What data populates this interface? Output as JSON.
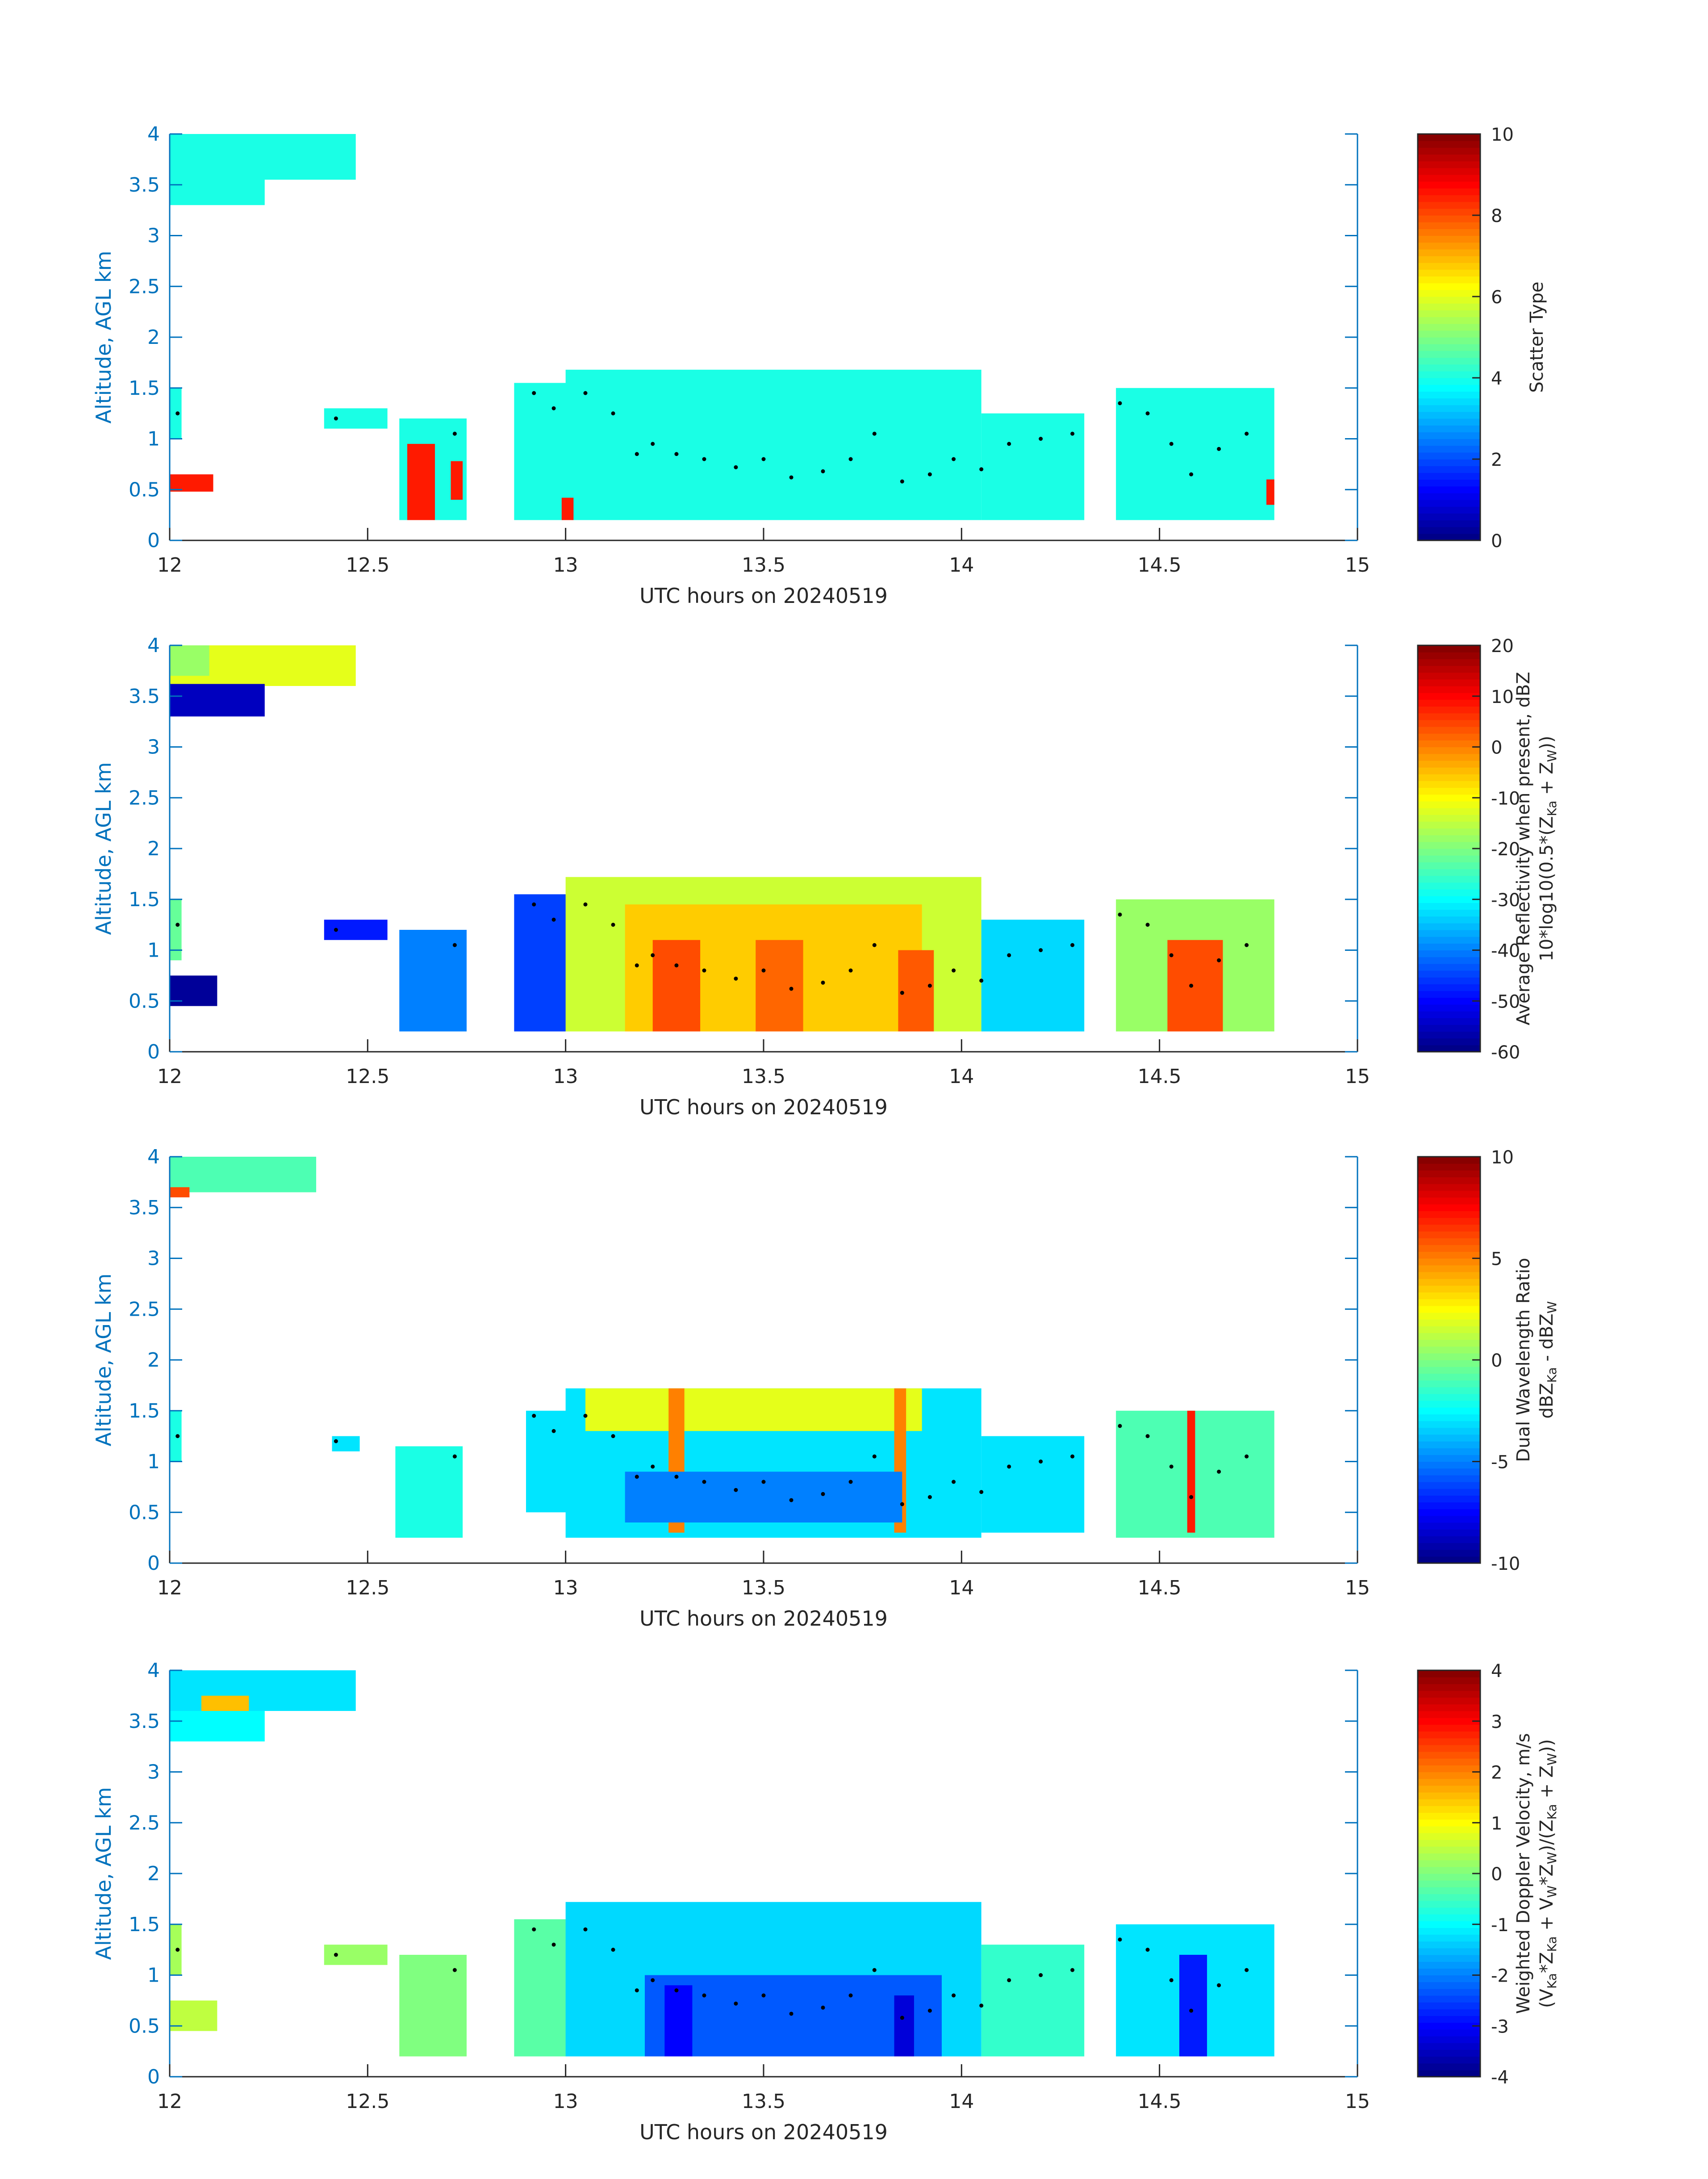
{
  "chart_data": [
    {
      "type": "heatmap",
      "xlabel": "UTC hours on 20240519",
      "ylabel": "Altitude, AGL km",
      "xlim": [
        12,
        15
      ],
      "ylim": [
        0,
        4
      ],
      "xticks": [
        "12",
        "12.5",
        "13",
        "13.5",
        "14",
        "14.5",
        "15"
      ],
      "yticks": [
        "0",
        "0.5",
        "1",
        "1.5",
        "2",
        "2.5",
        "3",
        "3.5",
        "4"
      ],
      "colorbar": {
        "label_lines": [
          "Scatter Type"
        ],
        "range": [
          0,
          10
        ],
        "ticks": [
          "0",
          "2",
          "4",
          "6",
          "8",
          "10"
        ]
      },
      "regions": [
        {
          "x0": 12.0,
          "x1": 12.47,
          "y0": 3.55,
          "y1": 4.0,
          "value": 4
        },
        {
          "x0": 12.0,
          "x1": 12.24,
          "y0": 3.3,
          "y1": 3.6,
          "value": 4
        },
        {
          "x0": 12.0,
          "x1": 12.03,
          "y0": 1.0,
          "y1": 1.5,
          "value": 4
        },
        {
          "x0": 12.39,
          "x1": 12.55,
          "y0": 1.1,
          "y1": 1.3,
          "value": 4
        },
        {
          "x0": 12.58,
          "x1": 12.75,
          "y0": 0.2,
          "y1": 1.2,
          "value": 4
        },
        {
          "x0": 12.87,
          "x1": 13.1,
          "y0": 0.2,
          "y1": 1.55,
          "value": 4
        },
        {
          "x0": 13.0,
          "x1": 14.05,
          "y0": 0.2,
          "y1": 1.68,
          "value": 4
        },
        {
          "x0": 14.05,
          "x1": 14.31,
          "y0": 0.2,
          "y1": 1.25,
          "value": 4
        },
        {
          "x0": 14.39,
          "x1": 14.79,
          "y0": 0.2,
          "y1": 1.5,
          "value": 4
        },
        {
          "x0": 12.0,
          "x1": 12.11,
          "y0": 0.48,
          "y1": 0.65,
          "value": 8.5
        },
        {
          "x0": 12.6,
          "x1": 12.67,
          "y0": 0.2,
          "y1": 0.95,
          "value": 8.5
        },
        {
          "x0": 12.71,
          "x1": 12.74,
          "y0": 0.4,
          "y1": 0.78,
          "value": 8.5
        },
        {
          "x0": 12.99,
          "x1": 13.02,
          "y0": 0.2,
          "y1": 0.42,
          "value": 8.5
        },
        {
          "x0": 14.77,
          "x1": 14.79,
          "y0": 0.35,
          "y1": 0.6,
          "value": 8.5
        }
      ],
      "markers": [
        {
          "x": 12.02,
          "y": 1.25
        },
        {
          "x": 12.42,
          "y": 1.2
        },
        {
          "x": 12.72,
          "y": 1.05
        },
        {
          "x": 12.92,
          "y": 1.45
        },
        {
          "x": 12.97,
          "y": 1.3
        },
        {
          "x": 13.05,
          "y": 1.45
        },
        {
          "x": 13.12,
          "y": 1.25
        },
        {
          "x": 13.18,
          "y": 0.85
        },
        {
          "x": 13.22,
          "y": 0.95
        },
        {
          "x": 13.28,
          "y": 0.85
        },
        {
          "x": 13.35,
          "y": 0.8
        },
        {
          "x": 13.43,
          "y": 0.72
        },
        {
          "x": 13.5,
          "y": 0.8
        },
        {
          "x": 13.57,
          "y": 0.62
        },
        {
          "x": 13.65,
          "y": 0.68
        },
        {
          "x": 13.72,
          "y": 0.8
        },
        {
          "x": 13.78,
          "y": 1.05
        },
        {
          "x": 13.85,
          "y": 0.58
        },
        {
          "x": 13.92,
          "y": 0.65
        },
        {
          "x": 13.98,
          "y": 0.8
        },
        {
          "x": 14.05,
          "y": 0.7
        },
        {
          "x": 14.12,
          "y": 0.95
        },
        {
          "x": 14.2,
          "y": 1.0
        },
        {
          "x": 14.28,
          "y": 1.05
        },
        {
          "x": 14.4,
          "y": 1.35
        },
        {
          "x": 14.47,
          "y": 1.25
        },
        {
          "x": 14.53,
          "y": 0.95
        },
        {
          "x": 14.58,
          "y": 0.65
        },
        {
          "x": 14.65,
          "y": 0.9
        },
        {
          "x": 14.72,
          "y": 1.05
        }
      ]
    },
    {
      "type": "heatmap",
      "xlabel": "UTC hours on 20240519",
      "ylabel": "Altitude, AGL km",
      "xlim": [
        12,
        15
      ],
      "ylim": [
        0,
        4
      ],
      "xticks": [
        "12",
        "12.5",
        "13",
        "13.5",
        "14",
        "14.5",
        "15"
      ],
      "yticks": [
        "0",
        "0.5",
        "1",
        "1.5",
        "2",
        "2.5",
        "3",
        "3.5",
        "4"
      ],
      "colorbar": {
        "label_lines": [
          "Average Reflectivity when present, dBZ",
          "10*log10(0.5*(Z",
          "Ka",
          " + Z",
          "W",
          "))"
        ],
        "range": [
          -60,
          20
        ],
        "ticks": [
          "-60",
          "-50",
          "-40",
          "-30",
          "-20",
          "-10",
          "0",
          "10",
          "20"
        ]
      },
      "regions": [
        {
          "x0": 12.0,
          "x1": 12.47,
          "y0": 3.6,
          "y1": 4.0,
          "value": -12
        },
        {
          "x0": 12.0,
          "x1": 12.1,
          "y0": 3.7,
          "y1": 4.0,
          "value": -18
        },
        {
          "x0": 12.0,
          "x1": 12.24,
          "y0": 3.3,
          "y1": 3.62,
          "value": -55
        },
        {
          "x0": 12.0,
          "x1": 12.03,
          "y0": 0.9,
          "y1": 1.5,
          "value": -22
        },
        {
          "x0": 12.0,
          "x1": 12.12,
          "y0": 0.45,
          "y1": 0.75,
          "value": -58
        },
        {
          "x0": 12.39,
          "x1": 12.55,
          "y0": 1.1,
          "y1": 1.3,
          "value": -48
        },
        {
          "x0": 12.58,
          "x1": 12.75,
          "y0": 0.2,
          "y1": 1.2,
          "value": -40
        },
        {
          "x0": 12.87,
          "x1": 13.1,
          "y0": 0.2,
          "y1": 1.55,
          "value": -45
        },
        {
          "x0": 13.0,
          "x1": 14.05,
          "y0": 0.2,
          "y1": 1.72,
          "value": -14
        },
        {
          "x0": 13.15,
          "x1": 13.9,
          "y0": 0.2,
          "y1": 1.45,
          "value": -6
        },
        {
          "x0": 13.22,
          "x1": 13.34,
          "y0": 0.2,
          "y1": 1.1,
          "value": 4
        },
        {
          "x0": 13.48,
          "x1": 13.6,
          "y0": 0.2,
          "y1": 1.1,
          "value": 2
        },
        {
          "x0": 13.84,
          "x1": 13.93,
          "y0": 0.2,
          "y1": 1.0,
          "value": 3
        },
        {
          "x0": 14.05,
          "x1": 14.31,
          "y0": 0.2,
          "y1": 1.3,
          "value": -33
        },
        {
          "x0": 14.39,
          "x1": 14.79,
          "y0": 0.2,
          "y1": 1.5,
          "value": -18
        },
        {
          "x0": 14.52,
          "x1": 14.66,
          "y0": 0.2,
          "y1": 1.1,
          "value": 4
        }
      ],
      "markers": [
        {
          "x": 12.02,
          "y": 1.25
        },
        {
          "x": 12.42,
          "y": 1.2
        },
        {
          "x": 12.72,
          "y": 1.05
        },
        {
          "x": 12.92,
          "y": 1.45
        },
        {
          "x": 12.97,
          "y": 1.3
        },
        {
          "x": 13.05,
          "y": 1.45
        },
        {
          "x": 13.12,
          "y": 1.25
        },
        {
          "x": 13.18,
          "y": 0.85
        },
        {
          "x": 13.22,
          "y": 0.95
        },
        {
          "x": 13.28,
          "y": 0.85
        },
        {
          "x": 13.35,
          "y": 0.8
        },
        {
          "x": 13.43,
          "y": 0.72
        },
        {
          "x": 13.5,
          "y": 0.8
        },
        {
          "x": 13.57,
          "y": 0.62
        },
        {
          "x": 13.65,
          "y": 0.68
        },
        {
          "x": 13.72,
          "y": 0.8
        },
        {
          "x": 13.78,
          "y": 1.05
        },
        {
          "x": 13.85,
          "y": 0.58
        },
        {
          "x": 13.92,
          "y": 0.65
        },
        {
          "x": 13.98,
          "y": 0.8
        },
        {
          "x": 14.05,
          "y": 0.7
        },
        {
          "x": 14.12,
          "y": 0.95
        },
        {
          "x": 14.2,
          "y": 1.0
        },
        {
          "x": 14.28,
          "y": 1.05
        },
        {
          "x": 14.4,
          "y": 1.35
        },
        {
          "x": 14.47,
          "y": 1.25
        },
        {
          "x": 14.53,
          "y": 0.95
        },
        {
          "x": 14.58,
          "y": 0.65
        },
        {
          "x": 14.65,
          "y": 0.9
        },
        {
          "x": 14.72,
          "y": 1.05
        }
      ]
    },
    {
      "type": "heatmap",
      "xlabel": "UTC hours on 20240519",
      "ylabel": "Altitude, AGL km",
      "xlim": [
        12,
        15
      ],
      "ylim": [
        0,
        4
      ],
      "xticks": [
        "12",
        "12.5",
        "13",
        "13.5",
        "14",
        "14.5",
        "15"
      ],
      "yticks": [
        "0",
        "0.5",
        "1",
        "1.5",
        "2",
        "2.5",
        "3",
        "3.5",
        "4"
      ],
      "colorbar": {
        "label_lines": [
          "Dual Wavelength Ratio",
          "dBZ",
          "Ka",
          " - dBZ",
          "W"
        ],
        "range": [
          -10,
          10
        ],
        "ticks": [
          "-10",
          "-5",
          "0",
          "5",
          "10"
        ]
      },
      "regions": [
        {
          "x0": 12.0,
          "x1": 12.37,
          "y0": 3.65,
          "y1": 4.0,
          "value": -1
        },
        {
          "x0": 12.0,
          "x1": 12.05,
          "y0": 3.6,
          "y1": 3.7,
          "value": 6
        },
        {
          "x0": 12.0,
          "x1": 12.03,
          "y0": 1.0,
          "y1": 1.5,
          "value": -2
        },
        {
          "x0": 12.41,
          "x1": 12.48,
          "y0": 1.1,
          "y1": 1.25,
          "value": -3
        },
        {
          "x0": 12.57,
          "x1": 12.74,
          "y0": 0.25,
          "y1": 1.15,
          "value": -2
        },
        {
          "x0": 12.9,
          "x1": 13.1,
          "y0": 0.5,
          "y1": 1.5,
          "value": -3
        },
        {
          "x0": 13.0,
          "x1": 14.05,
          "y0": 0.25,
          "y1": 1.72,
          "value": -3
        },
        {
          "x0": 13.05,
          "x1": 13.9,
          "y0": 1.3,
          "y1": 1.72,
          "value": 2
        },
        {
          "x0": 13.26,
          "x1": 13.3,
          "y0": 0.3,
          "y1": 1.72,
          "value": 5
        },
        {
          "x0": 13.83,
          "x1": 13.86,
          "y0": 0.3,
          "y1": 1.72,
          "value": 5
        },
        {
          "x0": 13.15,
          "x1": 13.85,
          "y0": 0.4,
          "y1": 0.9,
          "value": -5
        },
        {
          "x0": 14.05,
          "x1": 14.31,
          "y0": 0.3,
          "y1": 1.25,
          "value": -3
        },
        {
          "x0": 14.39,
          "x1": 14.79,
          "y0": 0.25,
          "y1": 1.5,
          "value": -1
        },
        {
          "x0": 14.57,
          "x1": 14.59,
          "y0": 0.3,
          "y1": 1.5,
          "value": 7
        }
      ],
      "markers": [
        {
          "x": 12.02,
          "y": 1.25
        },
        {
          "x": 12.42,
          "y": 1.2
        },
        {
          "x": 12.72,
          "y": 1.05
        },
        {
          "x": 12.92,
          "y": 1.45
        },
        {
          "x": 12.97,
          "y": 1.3
        },
        {
          "x": 13.05,
          "y": 1.45
        },
        {
          "x": 13.12,
          "y": 1.25
        },
        {
          "x": 13.18,
          "y": 0.85
        },
        {
          "x": 13.22,
          "y": 0.95
        },
        {
          "x": 13.28,
          "y": 0.85
        },
        {
          "x": 13.35,
          "y": 0.8
        },
        {
          "x": 13.43,
          "y": 0.72
        },
        {
          "x": 13.5,
          "y": 0.8
        },
        {
          "x": 13.57,
          "y": 0.62
        },
        {
          "x": 13.65,
          "y": 0.68
        },
        {
          "x": 13.72,
          "y": 0.8
        },
        {
          "x": 13.78,
          "y": 1.05
        },
        {
          "x": 13.85,
          "y": 0.58
        },
        {
          "x": 13.92,
          "y": 0.65
        },
        {
          "x": 13.98,
          "y": 0.8
        },
        {
          "x": 14.05,
          "y": 0.7
        },
        {
          "x": 14.12,
          "y": 0.95
        },
        {
          "x": 14.2,
          "y": 1.0
        },
        {
          "x": 14.28,
          "y": 1.05
        },
        {
          "x": 14.4,
          "y": 1.35
        },
        {
          "x": 14.47,
          "y": 1.25
        },
        {
          "x": 14.53,
          "y": 0.95
        },
        {
          "x": 14.58,
          "y": 0.65
        },
        {
          "x": 14.65,
          "y": 0.9
        },
        {
          "x": 14.72,
          "y": 1.05
        }
      ]
    },
    {
      "type": "heatmap",
      "xlabel": "UTC hours on 20240519",
      "ylabel": "Altitude, AGL km",
      "xlim": [
        12,
        15
      ],
      "ylim": [
        0,
        4
      ],
      "xticks": [
        "12",
        "12.5",
        "13",
        "13.5",
        "14",
        "14.5",
        "15"
      ],
      "yticks": [
        "0",
        "0.5",
        "1",
        "1.5",
        "2",
        "2.5",
        "3",
        "3.5",
        "4"
      ],
      "colorbar": {
        "label_lines": [
          "Weighted Doppler Velocity, m/s",
          "(V",
          "Ka",
          "*Z",
          "Ka",
          " + V",
          "W",
          "*Z",
          "W",
          ")/(Z",
          "Ka",
          " + Z",
          "W",
          "))"
        ],
        "range": [
          -4,
          4
        ],
        "ticks": [
          "-4",
          "-3",
          "-2",
          "-1",
          "0",
          "1",
          "2",
          "3",
          "4"
        ]
      },
      "regions": [
        {
          "x0": 12.0,
          "x1": 12.47,
          "y0": 3.6,
          "y1": 4.0,
          "value": -1.2
        },
        {
          "x0": 12.08,
          "x1": 12.2,
          "y0": 3.55,
          "y1": 3.75,
          "value": 1.5
        },
        {
          "x0": 12.0,
          "x1": 12.24,
          "y0": 3.3,
          "y1": 3.6,
          "value": -1.0
        },
        {
          "x0": 12.0,
          "x1": 12.03,
          "y0": 1.0,
          "y1": 1.5,
          "value": 0.3
        },
        {
          "x0": 12.0,
          "x1": 12.12,
          "y0": 0.45,
          "y1": 0.75,
          "value": 0.5
        },
        {
          "x0": 12.39,
          "x1": 12.55,
          "y0": 1.1,
          "y1": 1.3,
          "value": 0.2
        },
        {
          "x0": 12.58,
          "x1": 12.75,
          "y0": 0.2,
          "y1": 1.2,
          "value": 0.0
        },
        {
          "x0": 12.87,
          "x1": 13.1,
          "y0": 0.2,
          "y1": 1.55,
          "value": -0.3
        },
        {
          "x0": 13.0,
          "x1": 14.05,
          "y0": 0.2,
          "y1": 1.72,
          "value": -1.3
        },
        {
          "x0": 13.2,
          "x1": 13.95,
          "y0": 0.2,
          "y1": 1.0,
          "value": -2.3
        },
        {
          "x0": 13.25,
          "x1": 13.32,
          "y0": 0.2,
          "y1": 0.9,
          "value": -3.0
        },
        {
          "x0": 13.83,
          "x1": 13.88,
          "y0": 0.2,
          "y1": 0.8,
          "value": -3.3
        },
        {
          "x0": 14.05,
          "x1": 14.31,
          "y0": 0.2,
          "y1": 1.3,
          "value": -0.6
        },
        {
          "x0": 14.39,
          "x1": 14.79,
          "y0": 0.2,
          "y1": 1.5,
          "value": -1.2
        },
        {
          "x0": 14.55,
          "x1": 14.62,
          "y0": 0.2,
          "y1": 1.2,
          "value": -2.8
        }
      ],
      "markers": [
        {
          "x": 12.02,
          "y": 1.25
        },
        {
          "x": 12.42,
          "y": 1.2
        },
        {
          "x": 12.72,
          "y": 1.05
        },
        {
          "x": 12.92,
          "y": 1.45
        },
        {
          "x": 12.97,
          "y": 1.3
        },
        {
          "x": 13.05,
          "y": 1.45
        },
        {
          "x": 13.12,
          "y": 1.25
        },
        {
          "x": 13.18,
          "y": 0.85
        },
        {
          "x": 13.22,
          "y": 0.95
        },
        {
          "x": 13.28,
          "y": 0.85
        },
        {
          "x": 13.35,
          "y": 0.8
        },
        {
          "x": 13.43,
          "y": 0.72
        },
        {
          "x": 13.5,
          "y": 0.8
        },
        {
          "x": 13.57,
          "y": 0.62
        },
        {
          "x": 13.65,
          "y": 0.68
        },
        {
          "x": 13.72,
          "y": 0.8
        },
        {
          "x": 13.78,
          "y": 1.05
        },
        {
          "x": 13.85,
          "y": 0.58
        },
        {
          "x": 13.92,
          "y": 0.65
        },
        {
          "x": 13.98,
          "y": 0.8
        },
        {
          "x": 14.05,
          "y": 0.7
        },
        {
          "x": 14.12,
          "y": 0.95
        },
        {
          "x": 14.2,
          "y": 1.0
        },
        {
          "x": 14.28,
          "y": 1.05
        },
        {
          "x": 14.4,
          "y": 1.35
        },
        {
          "x": 14.47,
          "y": 1.25
        },
        {
          "x": 14.53,
          "y": 0.95
        },
        {
          "x": 14.58,
          "y": 0.65
        },
        {
          "x": 14.65,
          "y": 0.9
        },
        {
          "x": 14.72,
          "y": 1.05
        }
      ]
    }
  ]
}
